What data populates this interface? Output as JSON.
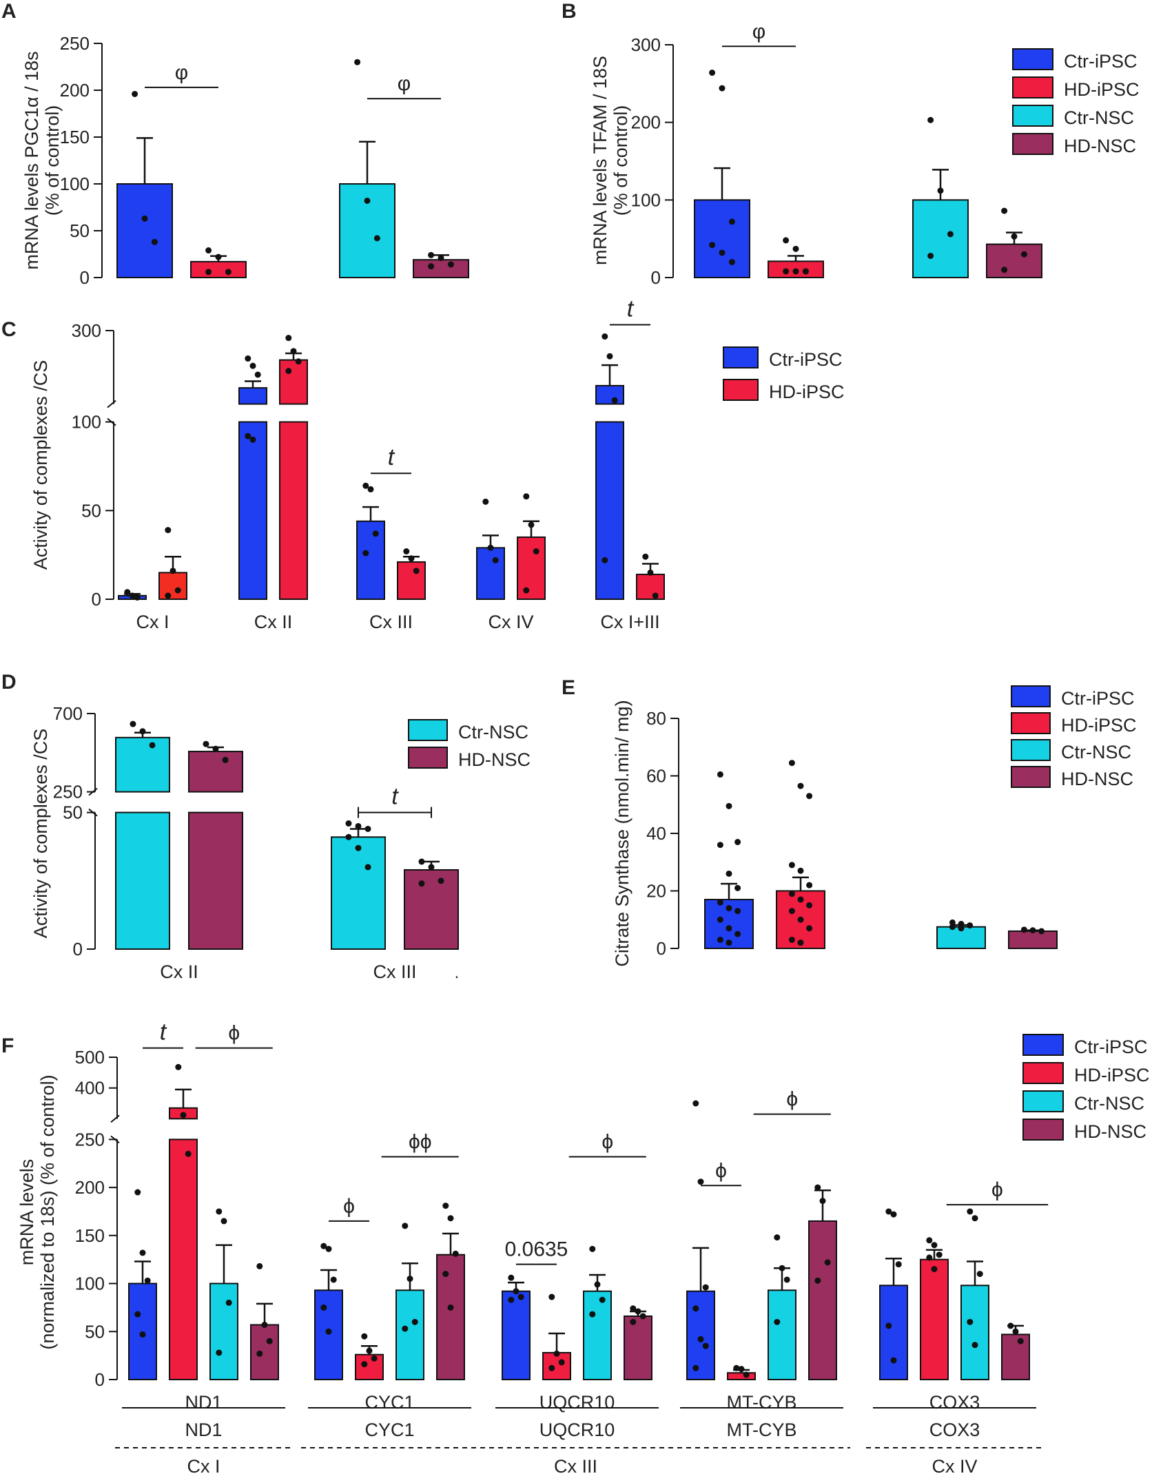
{
  "figure": {
    "colors": {
      "ctr_ipsc": "#1f3ff0",
      "hd_ipsc": "#ef1d3f",
      "ctr_nsc": "#14d2e3",
      "hd_nsc": "#992e5f",
      "cx1_hd": "#f42d22"
    }
  },
  "chart_data": [
    {
      "panel": "A",
      "type": "bar",
      "ylabel": [
        "mRNA levels PGC1α / 18s",
        "(% of control)"
      ],
      "ylim": [
        0,
        250
      ],
      "yticks": [
        0,
        50,
        100,
        150,
        200,
        250
      ],
      "groups": [
        {
          "label": "",
          "bars": [
            {
              "series": "Ctr-iPSC",
              "value": 100,
              "sem": 49,
              "points": [
                196,
                63,
                38
              ]
            },
            {
              "series": "HD-iPSC",
              "value": 17,
              "sem": 6,
              "points": [
                29,
                22,
                6,
                6
              ]
            }
          ]
        },
        {
          "label": "",
          "bars": [
            {
              "series": "Ctr-NSC",
              "value": 100,
              "sem": 45,
              "points": [
                230,
                82,
                42
              ]
            },
            {
              "series": "HD-NSC",
              "value": 19,
              "sem": 5,
              "points": [
                24,
                21,
                14,
                12
              ]
            }
          ]
        }
      ],
      "annotations": [
        {
          "text": "φ",
          "group": 0,
          "from": 0,
          "to": 1,
          "y": 203
        },
        {
          "text": "φ",
          "group": 1,
          "from": 0,
          "to": 1,
          "y": 191
        }
      ]
    },
    {
      "panel": "B",
      "type": "bar",
      "ylabel": [
        "mRNA levels TFAM / 18S",
        "(% of control)"
      ],
      "ylim": [
        0,
        300
      ],
      "yticks": [
        0,
        100,
        200,
        300
      ],
      "legend": [
        "Ctr-iPSC",
        "HD-iPSC",
        "Ctr-NSC",
        "HD-NSC"
      ],
      "groups": [
        {
          "label": "",
          "bars": [
            {
              "series": "Ctr-iPSC",
              "value": 100,
              "sem": 41,
              "points": [
                264,
                244,
                72,
                42,
                32,
                20
              ]
            },
            {
              "series": "HD-iPSC",
              "value": 21,
              "sem": 7,
              "points": [
                48,
                37,
                8,
                8,
                8,
                8
              ]
            }
          ]
        },
        {
          "label": "",
          "bars": [
            {
              "series": "Ctr-NSC",
              "value": 100,
              "sem": 39,
              "points": [
                203,
                112,
                56,
                28
              ]
            },
            {
              "series": "HD-NSC",
              "value": 43,
              "sem": 15,
              "points": [
                86,
                53,
                30,
                10
              ]
            }
          ]
        }
      ],
      "annotations": [
        {
          "text": "φ",
          "group": 0,
          "from": 0,
          "to": 1,
          "y": 298
        }
      ]
    },
    {
      "panel": "C",
      "type": "bar",
      "ylabel": [
        "Activity of complexes /CS"
      ],
      "ylim": [
        0,
        300
      ],
      "break": [
        100,
        200
      ],
      "yticks": [
        0,
        50,
        100,
        300
      ],
      "legend": [
        "Ctr-iPSC",
        "HD-iPSC"
      ],
      "groups": [
        {
          "label": "Cx I",
          "bars": [
            {
              "series": "Ctr-iPSC",
              "value": 2,
              "sem": 1,
              "points": [
                4,
                2,
                1
              ]
            },
            {
              "series": "HD-iPSC",
              "value": 15,
              "sem": 9,
              "points": [
                39,
                16,
                5,
                2
              ]
            }
          ]
        },
        {
          "label": "Cx II",
          "bars": [
            {
              "series": "Ctr-iPSC",
              "value": 222,
              "sem": 9,
              "points": [
                262,
                252,
                240,
                92,
                90
              ]
            },
            {
              "series": "HD-iPSC",
              "value": 260,
              "sem": 9,
              "points": [
                290,
                272,
                258,
                245
              ]
            }
          ]
        },
        {
          "label": "Cx III",
          "bars": [
            {
              "series": "Ctr-iPSC",
              "value": 44,
              "sem": 8,
              "points": [
                64,
                62,
                37,
                26
              ]
            },
            {
              "series": "HD-iPSC",
              "value": 21,
              "sem": 3,
              "points": [
                27,
                23,
                16
              ]
            }
          ]
        },
        {
          "label": "Cx IV",
          "bars": [
            {
              "series": "Ctr-iPSC",
              "value": 29,
              "sem": 7,
              "points": [
                55,
                29,
                22
              ]
            },
            {
              "series": "HD-iPSC",
              "value": 35,
              "sem": 9,
              "points": [
                58,
                42,
                27,
                5
              ]
            }
          ]
        },
        {
          "label": "Cx I+III",
          "bars": [
            {
              "series": "Ctr-iPSC",
              "value": 225,
              "sem": 28,
              "points": [
                292,
                265,
                205,
                22
              ]
            },
            {
              "series": "HD-iPSC",
              "value": 14,
              "sem": 6,
              "points": [
                24,
                15,
                2
              ]
            }
          ]
        }
      ],
      "annotations": [
        {
          "text": "t",
          "group": 2,
          "from": 0,
          "to": 1,
          "y": 71
        },
        {
          "text": "t",
          "group": 4,
          "from": 0,
          "to": 1,
          "y": 308
        }
      ]
    },
    {
      "panel": "D",
      "type": "bar",
      "ylabel": [
        "Activity of complexes /CS"
      ],
      "ylim": [
        0,
        700
      ],
      "break": [
        50,
        250
      ],
      "yticks": [
        0,
        50,
        250,
        700
      ],
      "legend": [
        "Ctr-NSC",
        "HD-NSC"
      ],
      "footnote": ".",
      "groups": [
        {
          "label": "Cx II",
          "bars": [
            {
              "series": "Ctr-NSC",
              "value": 562,
              "sem": 28,
              "points": [
                640,
                598,
                518
              ]
            },
            {
              "series": "HD-NSC",
              "value": 482,
              "sem": 24,
              "points": [
                525,
                497,
                433
              ]
            }
          ]
        },
        {
          "label": "Cx III",
          "bars": [
            {
              "series": "Ctr-NSC",
              "value": 41,
              "sem": 3,
              "points": [
                46,
                45,
                44,
                41,
                37,
                30
              ]
            },
            {
              "series": "HD-NSC",
              "value": 29,
              "sem": 3,
              "points": [
                32,
                30,
                25,
                24
              ]
            }
          ]
        }
      ],
      "annotations": [
        {
          "text": "t",
          "group": 1,
          "from": 0,
          "to": 1,
          "y": 50
        }
      ]
    },
    {
      "panel": "E",
      "type": "bar",
      "ylabel": [
        "Citrate Synthase (nmol.min/ mg)"
      ],
      "ylim": [
        0,
        80
      ],
      "yticks": [
        0,
        20,
        40,
        60,
        80
      ],
      "legend": [
        "Ctr-iPSC",
        "HD-iPSC",
        "Ctr-NSC",
        "HD-NSC"
      ],
      "groups": [
        {
          "label": "",
          "bars": [
            {
              "series": "Ctr-iPSC",
              "value": 17,
              "sem": 5.5,
              "points": [
                60.5,
                49.5,
                37,
                36,
                26,
                21,
                16,
                14,
                13,
                10,
                7,
                5,
                3,
                2
              ]
            },
            {
              "series": "HD-iPSC",
              "value": 20,
              "sem": 4.7,
              "points": [
                64.5,
                56.5,
                53,
                29,
                27,
                22,
                19,
                17,
                15,
                13,
                10,
                7,
                3,
                2
              ]
            }
          ]
        },
        {
          "label": "",
          "bars": [
            {
              "series": "Ctr-NSC",
              "value": 7.5,
              "sem": 0.6,
              "points": [
                9,
                8.5,
                8,
                7.5,
                7
              ]
            },
            {
              "series": "HD-NSC",
              "value": 6,
              "sem": 0.3,
              "points": [
                6.5,
                6.3,
                6
              ]
            }
          ]
        }
      ]
    },
    {
      "panel": "F",
      "type": "bar",
      "ylabel": [
        "mRNA levels",
        "(normalized to 18s) (% of control)"
      ],
      "ylim": [
        0,
        500
      ],
      "break": [
        250,
        300
      ],
      "yticks": [
        0,
        50,
        100,
        150,
        200,
        250,
        400,
        500
      ],
      "legend": [
        "Ctr-iPSC",
        "HD-iPSC",
        "Ctr-NSC",
        "HD-NSC"
      ],
      "groups": [
        {
          "label": "ND1",
          "bars": [
            {
              "series": "Ctr-iPSC",
              "value": 100,
              "sem": 23,
              "points": [
                195,
                132,
                103,
                68,
                47
              ]
            },
            {
              "series": "HD-iPSC",
              "value": 335,
              "sem": 60,
              "points": [
                468,
                312,
                235
              ]
            },
            {
              "series": "Ctr-NSC",
              "value": 100,
              "sem": 40,
              "points": [
                175,
                165,
                80,
                28
              ]
            },
            {
              "series": "HD-NSC",
              "value": 57,
              "sem": 22,
              "points": [
                118,
                57,
                40,
                27
              ]
            }
          ]
        },
        {
          "label": "CYC1",
          "bars": [
            {
              "series": "Ctr-iPSC",
              "value": 93,
              "sem": 21,
              "points": [
                139,
                136,
                104,
                75,
                50
              ]
            },
            {
              "series": "HD-iPSC",
              "value": 26,
              "sem": 9,
              "points": [
                45,
                30,
                22,
                16
              ]
            },
            {
              "series": "Ctr-NSC",
              "value": 93,
              "sem": 28,
              "points": [
                160,
                105,
                60,
                53
              ]
            },
            {
              "series": "HD-NSC",
              "value": 130,
              "sem": 22,
              "points": [
                181,
                168,
                131,
                110,
                75
              ]
            }
          ]
        },
        {
          "label": "UQCR10",
          "bars": [
            {
              "series": "Ctr-iPSC",
              "value": 92,
              "sem": 9,
              "points": [
                106,
                92,
                86,
                83
              ]
            },
            {
              "series": "HD-iPSC",
              "value": 28,
              "sem": 20,
              "points": [
                86,
                27,
                18,
                12
              ]
            },
            {
              "series": "Ctr-NSC",
              "value": 92,
              "sem": 17,
              "points": [
                136,
                99,
                83,
                68
              ]
            },
            {
              "series": "HD-NSC",
              "value": 66,
              "sem": 5,
              "points": [
                74,
                71,
                66,
                60
              ]
            }
          ]
        },
        {
          "label": "MT-CYB",
          "bars": [
            {
              "series": "Ctr-iPSC",
              "value": 92,
              "sem": 45,
              "points": [
                350,
                206,
                96,
                74,
                42,
                35,
                12
              ]
            },
            {
              "series": "HD-iPSC",
              "value": 7,
              "sem": 3,
              "points": [
                12,
                11,
                5
              ]
            },
            {
              "series": "Ctr-NSC",
              "value": 93,
              "sem": 23,
              "points": [
                148,
                116,
                104,
                60
              ]
            },
            {
              "series": "HD-NSC",
              "value": 165,
              "sem": 32,
              "points": [
                200,
                186,
                122,
                103
              ]
            }
          ]
        },
        {
          "label": "COX3",
          "bars": [
            {
              "series": "Ctr-iPSC",
              "value": 98,
              "sem": 28,
              "points": [
                175,
                172,
                120,
                56,
                20
              ]
            },
            {
              "series": "HD-iPSC",
              "value": 125,
              "sem": 10,
              "points": [
                145,
                140,
                130,
                127,
                115
              ]
            },
            {
              "series": "Ctr-NSC",
              "value": 98,
              "sem": 25,
              "points": [
                175,
                168,
                110,
                60,
                36
              ]
            },
            {
              "series": "HD-NSC",
              "value": 47,
              "sem": 9,
              "points": [
                56,
                50,
                40
              ]
            }
          ]
        }
      ],
      "underlines": [
        "ND1",
        "CYC1",
        "UQCR10",
        "MT-CYB",
        "COX3"
      ],
      "complex_labels": [
        {
          "text": "Cx I",
          "groups": [
            0,
            0
          ]
        },
        {
          "text": "Cx III",
          "groups": [
            1,
            3
          ]
        },
        {
          "text": "Cx IV",
          "groups": [
            4,
            4
          ]
        }
      ],
      "annotations": [
        {
          "text": "t",
          "kind": "plain",
          "group": 0,
          "from": 0,
          "to": 1,
          "y": 530
        },
        {
          "text": "ϕ",
          "kind": "plain",
          "group": 0,
          "from": 1.3,
          "to": 3.2,
          "y": 530
        },
        {
          "text": "ϕ",
          "kind": "plain",
          "group": 1,
          "from": 0,
          "to": 1,
          "y": 165
        },
        {
          "text": "ϕϕ",
          "kind": "plain",
          "group": 1,
          "from": 1.3,
          "to": 3.2,
          "y": 232
        },
        {
          "text": "0.0635",
          "kind": "plain",
          "group": 2,
          "from": 0,
          "to": 1,
          "y": 120
        },
        {
          "text": "ϕ",
          "kind": "plain",
          "group": 2,
          "from": 1.3,
          "to": 3.2,
          "y": 232
        },
        {
          "text": "ϕ",
          "kind": "plain",
          "group": 3,
          "from": 0,
          "to": 1,
          "y": 202
        },
        {
          "text": "ϕ",
          "kind": "plain",
          "group": 3,
          "from": 1.3,
          "to": 3.2,
          "y": 315
        },
        {
          "text": "ϕ",
          "kind": "plain",
          "group": 4,
          "from": 1.3,
          "to": 3.8,
          "y": 182
        }
      ]
    }
  ]
}
